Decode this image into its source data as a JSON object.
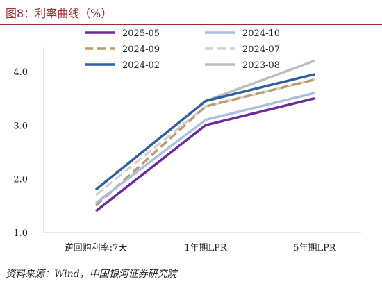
{
  "header": {
    "title": "图8：利率曲线（%）"
  },
  "footer": {
    "source": "资料来源：Wind，中国银河证券研究院"
  },
  "chart_data": {
    "type": "line",
    "title": "图8：利率曲线（%）",
    "xlabel": "",
    "ylabel": "",
    "categories": [
      "逆回购利率:7天",
      "1年期LPR",
      "5年期LPR"
    ],
    "ylim": [
      1.0,
      4.0
    ],
    "yticks": [
      "1.0",
      "2.0",
      "3.0",
      "4.0"
    ],
    "grid": false,
    "legend_position": "top",
    "series": [
      {
        "name": "2025-05",
        "values": [
          1.4,
          3.0,
          3.5
        ],
        "color": "#6a2aa0",
        "dash": false
      },
      {
        "name": "2024-10",
        "values": [
          1.55,
          3.1,
          3.6
        ],
        "color": "#a9bfe6",
        "dash": false
      },
      {
        "name": "2024-09",
        "values": [
          1.5,
          3.35,
          3.85
        ],
        "color": "#bf9a6a",
        "dash": true
      },
      {
        "name": "2024-07",
        "values": [
          1.7,
          3.35,
          3.85
        ],
        "color": "#d2d2d2",
        "dash": true
      },
      {
        "name": "2024-02",
        "values": [
          1.8,
          3.45,
          3.95
        ],
        "color": "#2f5fa6",
        "dash": false
      },
      {
        "name": "2023-08",
        "values": [
          1.8,
          3.45,
          4.2
        ],
        "color": "#bebebe",
        "dash": false
      }
    ]
  }
}
